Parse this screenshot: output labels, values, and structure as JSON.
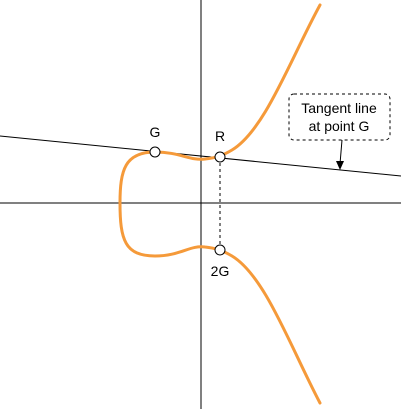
{
  "points": {
    "g_label": "G",
    "r_label": "R",
    "two_g_label": "2G"
  },
  "callout": {
    "line1": "Tangent line",
    "line2": "at point G"
  },
  "colors": {
    "curve": "#f59a3a",
    "line": "#000000",
    "point_fill": "#ffffff"
  }
}
